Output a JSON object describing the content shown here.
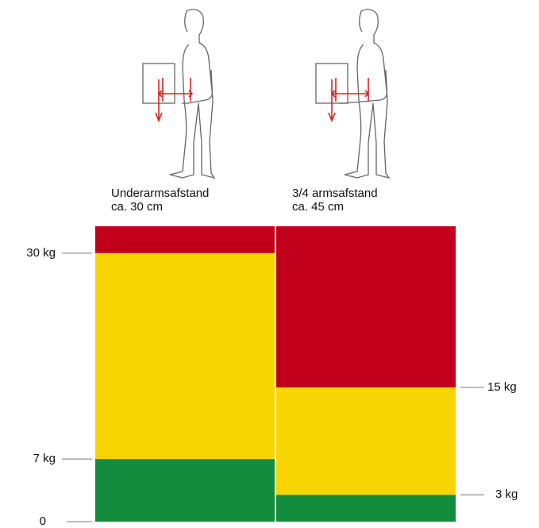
{
  "chart_data": {
    "type": "stacked-column",
    "categories": [
      [
        "Underarmsafstand",
        "ca. 30 cm"
      ],
      [
        "3/4 armsafstand",
        "ca. 45 cm"
      ]
    ],
    "series": [
      {
        "color": "#138c3d",
        "values": [
          7,
          3
        ]
      },
      {
        "color": "#f6d500",
        "values": [
          23,
          12
        ]
      },
      {
        "color": "#c1001b",
        "values": [
          3,
          18
        ]
      }
    ],
    "ylim": [
      0,
      33
    ],
    "yticks": [
      0,
      {
        "value": 7,
        "label": "7 kg"
      },
      {
        "value": 30,
        "label": "30 kg"
      }
    ],
    "y2lim": [
      0,
      33
    ],
    "y2ticks": [
      {
        "value": 3,
        "label": "3 kg"
      },
      {
        "value": 15,
        "label": "15 kg"
      }
    ]
  }
}
